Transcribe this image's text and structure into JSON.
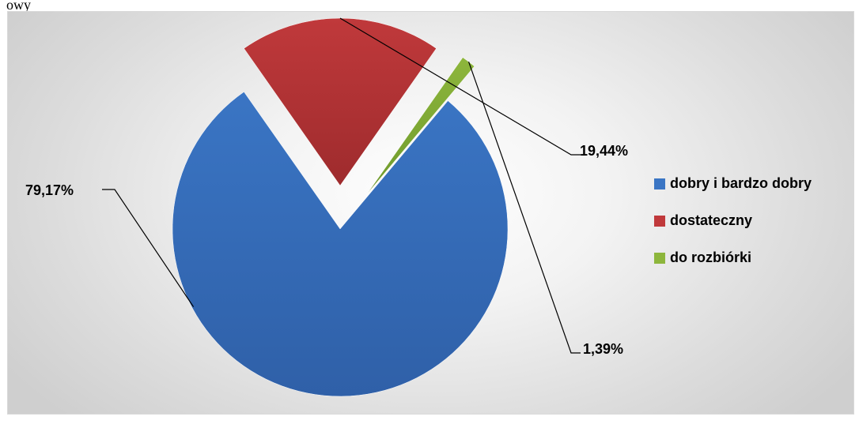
{
  "page": {
    "top_fragment": "owy"
  },
  "colors": {
    "frame_border": "#d9d9d9",
    "leader_line": "#000000"
  },
  "chart_data": {
    "type": "pie",
    "exploded": true,
    "legend_position": "right",
    "slices": [
      {
        "label": "dobry i bardzo dobry",
        "value": 79.17,
        "display": "79,17%",
        "color": "#3a75c4",
        "color_dark": "#2f60a8"
      },
      {
        "label": "dostateczny",
        "value": 19.44,
        "display": "19,44%",
        "color": "#c0393b",
        "color_dark": "#9e2b2d"
      },
      {
        "label": "do rozbiórki",
        "value": 1.39,
        "display": "1,39%",
        "color": "#8db63c",
        "color_dark": "#6f9a2c"
      }
    ]
  }
}
